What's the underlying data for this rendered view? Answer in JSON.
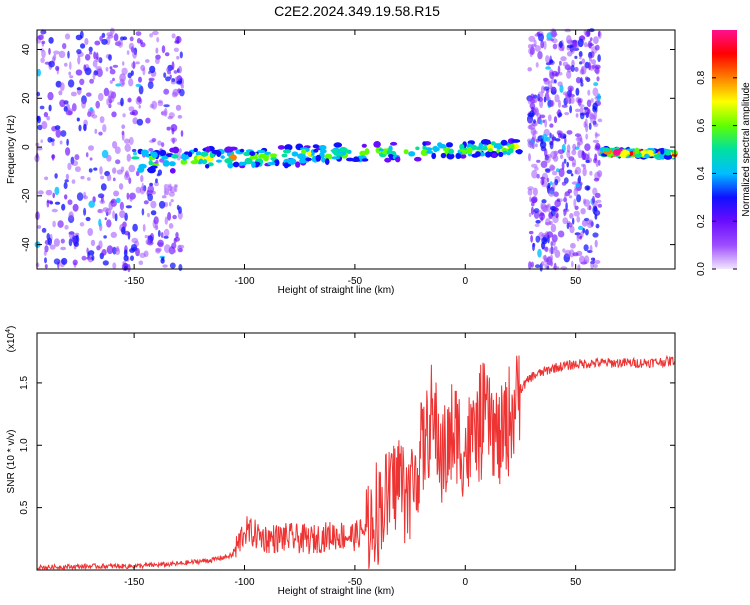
{
  "title": "C2E2.2024.349.19.58.R15",
  "chart_data": [
    {
      "type": "heatmap",
      "xlabel": "Height of straight line (km)",
      "ylabel": "Frequency (Hz)",
      "xlim": [
        -194,
        95
      ],
      "ylim": [
        -50,
        48
      ],
      "xticks": [
        -150,
        -100,
        -50,
        0,
        50
      ],
      "yticks": [
        -40,
        -20,
        0,
        20,
        40
      ],
      "grid": false,
      "colorbar": {
        "label": "Normalized spectral amplitude",
        "range": [
          0,
          1
        ],
        "ticks": [
          "0.0",
          "0.2",
          "0.4",
          "0.6",
          "0.8"
        ],
        "colors": [
          "#f2e6ff",
          "#9d4dff",
          "#6a0dff",
          "#1010ff",
          "#00bfff",
          "#00e0a0",
          "#60ff00",
          "#ffff00",
          "#ff8000",
          "#ff0000",
          "#ff1090"
        ]
      },
      "features": [
        {
          "name": "noise",
          "x_range": [
            -194,
            -128
          ],
          "f_range": [
            -50,
            48
          ],
          "level": 0.35
        },
        {
          "name": "trace",
          "x_range": [
            -150,
            25
          ],
          "f_start": -6,
          "f_end": 0,
          "level": 0.6
        },
        {
          "name": "noise",
          "x_range": [
            29,
            61
          ],
          "f_range": [
            -50,
            48
          ],
          "level": 0.35
        },
        {
          "name": "trace",
          "x_range": [
            62,
            95
          ],
          "f_start": -2,
          "f_end": -3,
          "level": 0.9
        }
      ]
    },
    {
      "type": "line",
      "xlabel": "Height of straight line (km)",
      "ylabel": "SNR (10 * v/v)",
      "y_multiplier": "(x10",
      "y_multiplier_exp": "4",
      "xlim": [
        -194,
        95
      ],
      "ylim": [
        0,
        1.9
      ],
      "xticks": [
        -150,
        -100,
        -50,
        0,
        50
      ],
      "yticks": [
        0.5,
        1.0,
        1.5
      ],
      "ytick_labels": [
        "0.5",
        "1.0",
        "1.5"
      ],
      "grid": false,
      "series_color": "#ee3333",
      "x": [
        -194,
        -170,
        -150,
        -130,
        -115,
        -105,
        -100,
        -90,
        -80,
        -70,
        -60,
        -50,
        -45,
        -40,
        -35,
        -30,
        -25,
        -20,
        -15,
        -10,
        -5,
        0,
        5,
        10,
        15,
        20,
        25,
        30,
        40,
        50,
        60,
        70,
        80,
        90,
        95
      ],
      "y": [
        0.02,
        0.03,
        0.03,
        0.05,
        0.08,
        0.12,
        0.32,
        0.25,
        0.26,
        0.24,
        0.28,
        0.27,
        0.33,
        0.45,
        0.6,
        0.75,
        0.6,
        0.95,
        1.2,
        0.9,
        1.1,
        0.95,
        1.1,
        1.25,
        1.0,
        1.2,
        1.45,
        1.55,
        1.62,
        1.65,
        1.66,
        1.66,
        1.66,
        1.67,
        1.68
      ]
    }
  ]
}
